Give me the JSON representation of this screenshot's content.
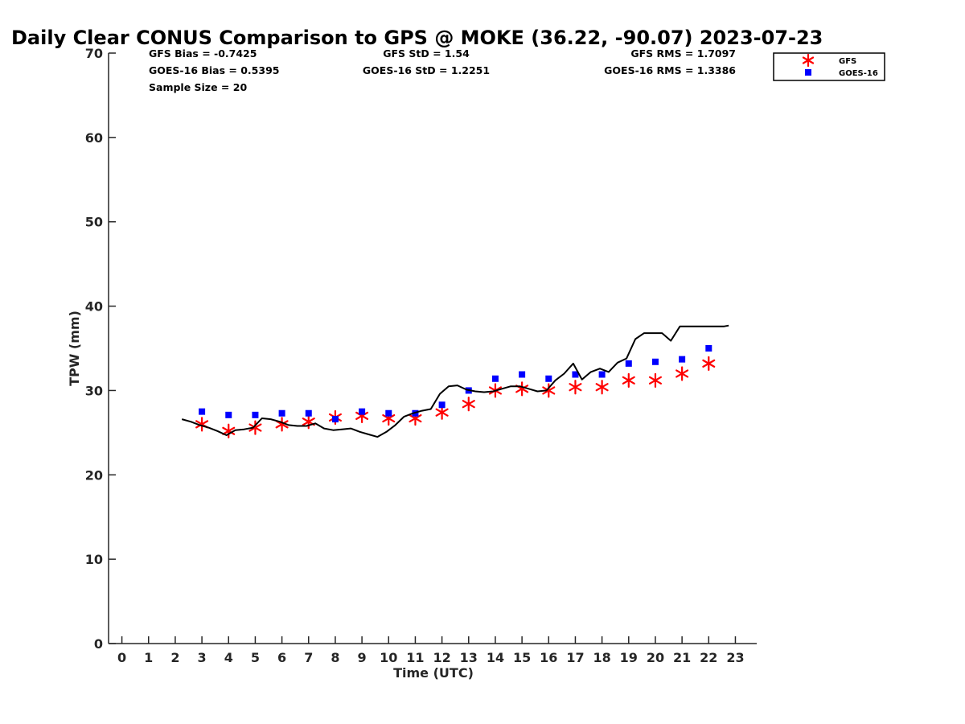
{
  "chart_data": {
    "type": "scatter",
    "title": "Daily Clear CONUS Comparison to GPS @ MOKE (36.22, -90.07) 2023-07-23",
    "xlabel": "Time (UTC)",
    "ylabel": "TPW (mm)",
    "xlim": [
      -0.5,
      23.8
    ],
    "ylim": [
      0,
      70
    ],
    "xticks": [
      0,
      1,
      2,
      3,
      4,
      5,
      6,
      7,
      8,
      9,
      10,
      11,
      12,
      13,
      14,
      15,
      16,
      17,
      18,
      19,
      20,
      21,
      22,
      23
    ],
    "yticks": [
      0,
      10,
      20,
      30,
      40,
      50,
      60,
      70
    ],
    "grid": false,
    "legend_position": "top-right",
    "stats": {
      "gfs_bias": "GFS Bias = -0.7425",
      "goes_bias": "GOES-16 Bias = 0.5395",
      "sample_size": "Sample Size = 20",
      "gfs_std": "GFS StD = 1.54",
      "goes_std": "GOES-16 StD = 1.2251",
      "gfs_rms": "GFS RMS = 1.7097",
      "goes_rms": "GOES-16 RMS = 1.3386"
    },
    "series": [
      {
        "name": "GFS",
        "marker": "asterisk",
        "color": "#ff0000",
        "x": [
          3,
          4,
          5,
          6,
          7,
          8,
          9,
          10,
          11,
          12,
          13,
          14,
          15,
          16,
          17,
          18,
          19,
          20,
          21,
          22
        ],
        "y": [
          26.0,
          25.2,
          25.6,
          26.0,
          26.3,
          26.8,
          27.0,
          26.7,
          26.7,
          27.4,
          28.4,
          30.0,
          30.2,
          30.0,
          30.4,
          30.4,
          31.2,
          31.2,
          32.0,
          33.2
        ]
      },
      {
        "name": "GOES-16",
        "marker": "square",
        "color": "#0000ff",
        "x": [
          3,
          4,
          5,
          6,
          7,
          8,
          9,
          10,
          11,
          12,
          13,
          14,
          15,
          16,
          17,
          18,
          19,
          20,
          21,
          22
        ],
        "y": [
          27.5,
          27.1,
          27.1,
          27.3,
          27.3,
          26.6,
          27.5,
          27.3,
          27.3,
          28.3,
          30.0,
          31.4,
          31.9,
          31.4,
          31.9,
          31.9,
          33.2,
          33.4,
          33.7,
          35.0
        ]
      },
      {
        "marker": "line",
        "color": "#000000",
        "x": [
          2.25,
          2.58,
          2.92,
          3.25,
          3.58,
          3.92,
          4.25,
          4.58,
          4.92,
          5.25,
          5.58,
          5.92,
          6.25,
          6.58,
          6.92,
          7.25,
          7.58,
          7.92,
          8.25,
          8.58,
          8.92,
          9.25,
          9.58,
          9.92,
          10.25,
          10.58,
          10.92,
          11.25,
          11.58,
          11.92,
          12.25,
          12.58,
          12.92,
          13.25,
          13.58,
          13.92,
          14.25,
          14.58,
          14.92,
          15.25,
          15.58,
          15.92,
          16.25,
          16.58,
          16.92,
          17.25,
          17.58,
          17.92,
          18.25,
          18.58,
          18.92,
          19.25,
          19.58,
          19.92,
          20.25,
          20.58,
          20.92,
          21.25,
          21.58,
          21.92,
          22.25,
          22.58,
          22.75
        ],
        "y": [
          26.6,
          26.3,
          25.9,
          25.6,
          25.2,
          24.7,
          25.3,
          25.4,
          25.6,
          26.7,
          26.6,
          26.3,
          25.9,
          25.8,
          25.8,
          26.1,
          25.5,
          25.3,
          25.4,
          25.5,
          25.1,
          24.8,
          24.5,
          25.1,
          25.9,
          26.9,
          27.3,
          27.6,
          27.8,
          29.6,
          30.5,
          30.6,
          30.1,
          29.9,
          29.8,
          29.9,
          30.2,
          30.5,
          30.5,
          30.2,
          29.9,
          30.0,
          31.2,
          32.0,
          33.2,
          31.3,
          32.2,
          32.6,
          32.2,
          33.3,
          33.8,
          36.1,
          36.8,
          36.8,
          36.8,
          35.9,
          37.6,
          37.6,
          37.6,
          37.6,
          37.6,
          37.6,
          37.7
        ]
      }
    ]
  }
}
